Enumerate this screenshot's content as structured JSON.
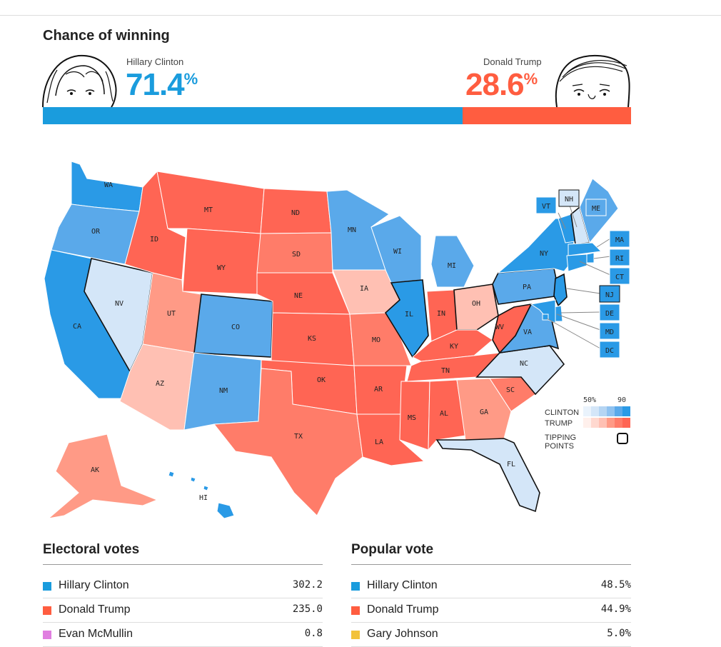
{
  "header": {
    "title": "Chance of winning"
  },
  "candidates": {
    "clinton": {
      "name": "Hillary Clinton",
      "pct": "71.4",
      "pct_sign": "%",
      "color": "#1a9cdd"
    },
    "trump": {
      "name": "Donald Trump",
      "pct": "28.6",
      "pct_sign": "%",
      "color": "#ff5d40"
    }
  },
  "win_bar": {
    "clinton_share": 71.4,
    "trump_share": 28.6
  },
  "map": {
    "states": [
      {
        "id": "WA",
        "lean": "clinton-strong"
      },
      {
        "id": "OR",
        "lean": "clinton-likely"
      },
      {
        "id": "CA",
        "lean": "clinton-strong"
      },
      {
        "id": "NV",
        "lean": "clinton-tossup"
      },
      {
        "id": "ID",
        "lean": "trump-strong"
      },
      {
        "id": "MT",
        "lean": "trump-strong"
      },
      {
        "id": "WY",
        "lean": "trump-strong"
      },
      {
        "id": "UT",
        "lean": "trump-lean"
      },
      {
        "id": "AZ",
        "lean": "trump-tossup"
      },
      {
        "id": "CO",
        "lean": "clinton-likely"
      },
      {
        "id": "NM",
        "lean": "clinton-likely"
      },
      {
        "id": "ND",
        "lean": "trump-strong"
      },
      {
        "id": "SD",
        "lean": "trump-likely"
      },
      {
        "id": "NE",
        "lean": "trump-strong"
      },
      {
        "id": "KS",
        "lean": "trump-strong"
      },
      {
        "id": "OK",
        "lean": "trump-strong"
      },
      {
        "id": "TX",
        "lean": "trump-likely"
      },
      {
        "id": "MN",
        "lean": "clinton-likely"
      },
      {
        "id": "IA",
        "lean": "trump-tossup"
      },
      {
        "id": "MO",
        "lean": "trump-likely"
      },
      {
        "id": "AR",
        "lean": "trump-strong"
      },
      {
        "id": "LA",
        "lean": "trump-strong"
      },
      {
        "id": "WI",
        "lean": "clinton-likely"
      },
      {
        "id": "IL",
        "lean": "clinton-strong"
      },
      {
        "id": "MI",
        "lean": "clinton-likely"
      },
      {
        "id": "IN",
        "lean": "trump-strong"
      },
      {
        "id": "OH",
        "lean": "trump-tossup"
      },
      {
        "id": "KY",
        "lean": "trump-strong"
      },
      {
        "id": "TN",
        "lean": "trump-strong"
      },
      {
        "id": "MS",
        "lean": "trump-strong"
      },
      {
        "id": "AL",
        "lean": "trump-strong"
      },
      {
        "id": "GA",
        "lean": "trump-lean"
      },
      {
        "id": "FL",
        "lean": "clinton-tossup"
      },
      {
        "id": "SC",
        "lean": "trump-likely"
      },
      {
        "id": "NC",
        "lean": "clinton-tossup"
      },
      {
        "id": "VA",
        "lean": "clinton-likely"
      },
      {
        "id": "WV",
        "lean": "trump-strong"
      },
      {
        "id": "PA",
        "lean": "clinton-likely"
      },
      {
        "id": "NY",
        "lean": "clinton-strong"
      },
      {
        "id": "VT",
        "lean": "clinton-strong"
      },
      {
        "id": "NH",
        "lean": "clinton-tossup"
      },
      {
        "id": "ME",
        "lean": "clinton-likely"
      },
      {
        "id": "MA",
        "lean": "clinton-strong"
      },
      {
        "id": "RI",
        "lean": "clinton-strong"
      },
      {
        "id": "CT",
        "lean": "clinton-strong"
      },
      {
        "id": "NJ",
        "lean": "clinton-strong"
      },
      {
        "id": "DE",
        "lean": "clinton-strong"
      },
      {
        "id": "MD",
        "lean": "clinton-strong"
      },
      {
        "id": "DC",
        "lean": "clinton-strong"
      },
      {
        "id": "AK",
        "lean": "trump-lean"
      },
      {
        "id": "HI",
        "lean": "clinton-strong"
      }
    ],
    "tipping_points": [
      "NV",
      "CO",
      "IL",
      "WV",
      "VA",
      "FL",
      "PA",
      "NJ",
      "NH",
      "OH",
      "NC"
    ],
    "colors": {
      "clinton-strong": "#2a9ae6",
      "clinton-likely": "#5aa9ea",
      "clinton-lean": "#8fc2f0",
      "clinton-tossup": "#d4e6f8",
      "trump-strong": "#ff6554",
      "trump-likely": "#ff7c69",
      "trump-lean": "#ff9a86",
      "trump-tossup": "#ffc0b3"
    }
  },
  "legend": {
    "scale_low": "50%",
    "scale_high": "90",
    "clinton_label": "CLINTON",
    "trump_label": "TRUMP",
    "tipping_label": "TIPPING POINTS"
  },
  "electoral": {
    "title": "Electoral votes",
    "rows": [
      {
        "name": "Hillary Clinton",
        "value": "302.2",
        "color": "#1a9cdd"
      },
      {
        "name": "Donald Trump",
        "value": "235.0",
        "color": "#ff5d40"
      },
      {
        "name": "Evan McMullin",
        "value": "0.8",
        "color": "#e07ee0"
      }
    ]
  },
  "popular": {
    "title": "Popular vote",
    "rows": [
      {
        "name": "Hillary Clinton",
        "value": "48.5%",
        "color": "#1a9cdd"
      },
      {
        "name": "Donald Trump",
        "value": "44.9%",
        "color": "#ff5d40"
      },
      {
        "name": "Gary Johnson",
        "value": "5.0%",
        "color": "#f2c23a"
      }
    ]
  }
}
